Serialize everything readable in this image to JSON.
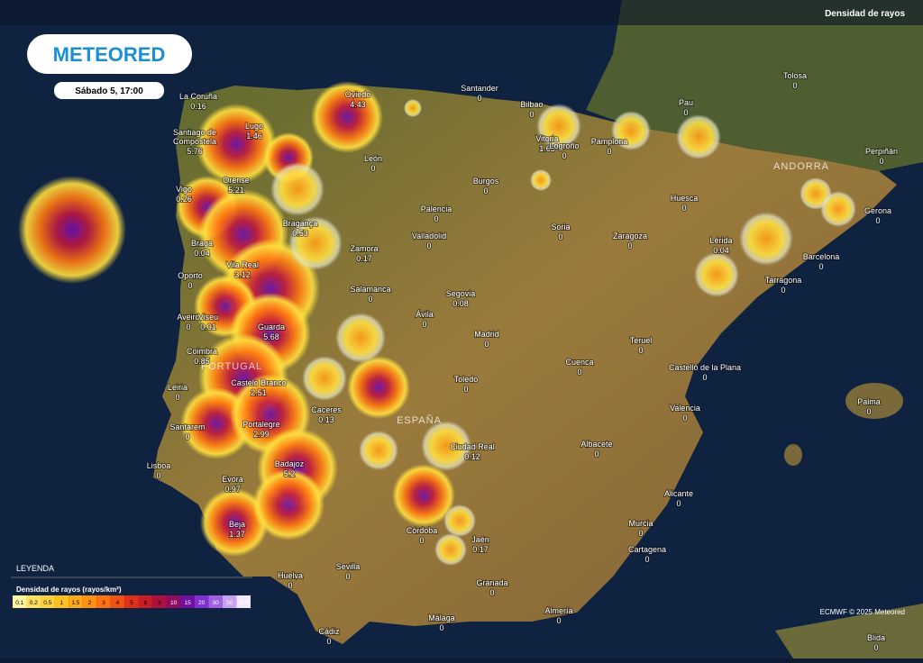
{
  "header": {
    "brand": "METEORED",
    "time": "Sábado 5, 17:00",
    "layer": "Densidad de rayos"
  },
  "regions": [
    "ANDORRA",
    "PORTUGAL",
    "ESPAÑA"
  ],
  "cities": [
    {
      "name": "La Coruña",
      "value": 0.16
    },
    {
      "name": "Lugo",
      "value": 1.46
    },
    {
      "name": "Santiago de Compostela",
      "value": 5.76
    },
    {
      "name": "Oviedo",
      "value": 4.43
    },
    {
      "name": "Santander",
      "value": 0
    },
    {
      "name": "Bilbao",
      "value": 0
    },
    {
      "name": "Vitoria",
      "value": 1.63
    },
    {
      "name": "Pamplona",
      "value": 0
    },
    {
      "name": "Pau",
      "value": 0
    },
    {
      "name": "Tolosa",
      "value": 0
    },
    {
      "name": "Perpiñán",
      "value": 0
    },
    {
      "name": "León",
      "value": 0
    },
    {
      "name": "Logroño",
      "value": 0
    },
    {
      "name": "Burgos",
      "value": 0
    },
    {
      "name": "Orense",
      "value": 5.21
    },
    {
      "name": "Vigo",
      "value": 0.26
    },
    {
      "name": "Huesca",
      "value": 0
    },
    {
      "name": "Gerona",
      "value": 0
    },
    {
      "name": "Palencia",
      "value": 0
    },
    {
      "name": "Bragança",
      "value": 0.53
    },
    {
      "name": "Soria",
      "value": 0
    },
    {
      "name": "Zaragoza",
      "value": 0
    },
    {
      "name": "Valladolid",
      "value": 0
    },
    {
      "name": "Zamora",
      "value": 0.17
    },
    {
      "name": "Braga",
      "value": 0.04
    },
    {
      "name": "Lérida",
      "value": 0.04
    },
    {
      "name": "Barcelona",
      "value": 0
    },
    {
      "name": "Vila Real",
      "value": 3.12
    },
    {
      "name": "Oporto",
      "value": 0
    },
    {
      "name": "Tarragona",
      "value": 0
    },
    {
      "name": "Salamanca",
      "value": 0
    },
    {
      "name": "Segovia",
      "value": 0.08
    },
    {
      "name": "Aveiro",
      "value": 0
    },
    {
      "name": "Viseu",
      "value": 0.01
    },
    {
      "name": "Guarda",
      "value": 5.68
    },
    {
      "name": "Ávila",
      "value": 0
    },
    {
      "name": "Madrid",
      "value": 0
    },
    {
      "name": "Teruel",
      "value": 0
    },
    {
      "name": "Coimbra",
      "value": 0.85
    },
    {
      "name": "Cuenca",
      "value": 0
    },
    {
      "name": "Castelló de la Plana",
      "value": 0
    },
    {
      "name": "Leiria",
      "value": 0
    },
    {
      "name": "Castelo Branco",
      "value": 2.51
    },
    {
      "name": "Toledo",
      "value": 0
    },
    {
      "name": "Palma",
      "value": 0
    },
    {
      "name": "Valencia",
      "value": 0
    },
    {
      "name": "Caceres",
      "value": 0.13
    },
    {
      "name": "Santarem",
      "value": 0
    },
    {
      "name": "Portalegre",
      "value": 2.99
    },
    {
      "name": "Albacete",
      "value": 0
    },
    {
      "name": "Ciudad Real",
      "value": 0.12
    },
    {
      "name": "Badajoz",
      "value": 5.2
    },
    {
      "name": "Lisboa",
      "value": 0
    },
    {
      "name": "Evora",
      "value": 0.97
    },
    {
      "name": "Alicante",
      "value": 0
    },
    {
      "name": "Murcia",
      "value": 0
    },
    {
      "name": "Córdoba",
      "value": 0
    },
    {
      "name": "Jaén",
      "value": 0.17
    },
    {
      "name": "Beja",
      "value": 1.37
    },
    {
      "name": "Cartagena",
      "value": 0
    },
    {
      "name": "Sevilla",
      "value": 0
    },
    {
      "name": "Huelva",
      "value": 0
    },
    {
      "name": "Granada",
      "value": 0
    },
    {
      "name": "Almería",
      "value": 0
    },
    {
      "name": "Málaga",
      "value": 0
    },
    {
      "name": "Cádiz",
      "value": 0
    },
    {
      "name": "Blida",
      "value": 0
    }
  ],
  "legend": {
    "heading": "LEYENDA",
    "title": "Densidad de rayos (rayos/km²)",
    "steps": [
      0.1,
      0.2,
      0.5,
      1,
      1.5,
      2,
      3,
      4,
      5,
      6,
      8,
      10,
      15,
      20,
      30,
      50,
      100
    ],
    "colors": [
      "#fff4a0",
      "#ffe060",
      "#ffd040",
      "#ffc020",
      "#ffa818",
      "#ff9010",
      "#ff7010",
      "#f05010",
      "#e03018",
      "#c81c28",
      "#b01040",
      "#900c60",
      "#7010a0",
      "#8030d0",
      "#a060e0",
      "#c8a0f0",
      "#f0e8ff"
    ]
  },
  "credit": "ECMWF © 2025 Meteored"
}
